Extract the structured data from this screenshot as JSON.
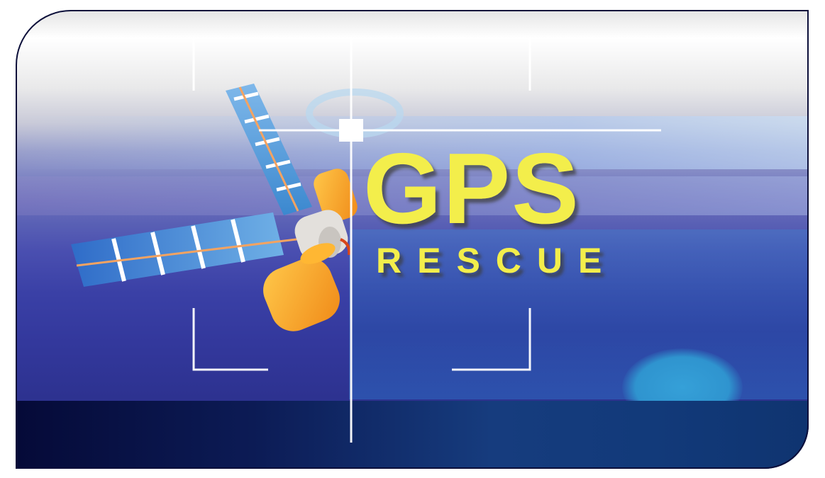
{
  "logo": {
    "title": "GPS",
    "subtitle": "RESCUE"
  },
  "icons": {
    "satellite": "satellite-icon",
    "crosshair": "crosshair-icon"
  },
  "colors": {
    "title_yellow": "#f3ee4c",
    "background_blue": "#3a40a6",
    "bottom_band": "#0c1b55",
    "satellite_orange": "#f7a023",
    "solar_panel_blue": "#3e8fd6"
  }
}
